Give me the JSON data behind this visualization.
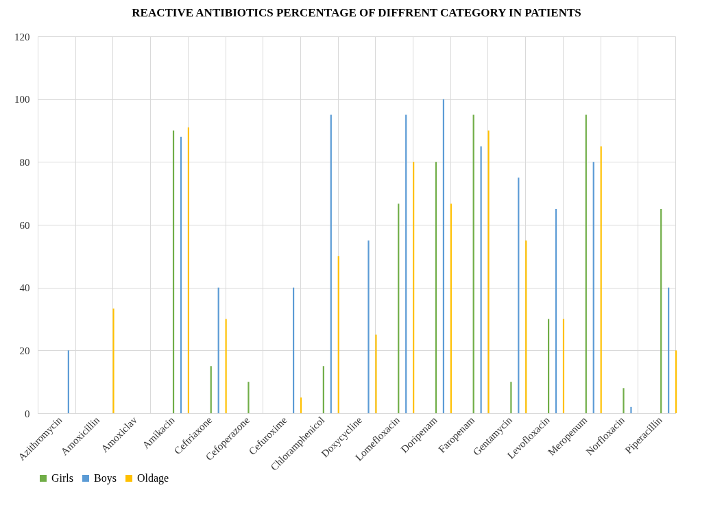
{
  "chart_data": {
    "type": "bar",
    "title": "REACTIVE ANTIBIOTICS PERCENTAGE OF DIFFRENT CATEGORY  IN PATIENTS",
    "categories": [
      "Azithromycin",
      "Amoxicillin",
      "Amoxiclav",
      "Amikacin",
      "Ceftriaxone",
      "Cefoperazone",
      "Cefuroxime",
      "Chloramphenicol",
      "Doxycycline",
      "Lomefloxacin",
      "Doripenam",
      "Faropenam",
      "Gentamycin",
      "Levofloxacin",
      "Meropenum",
      "Norfloxacin",
      "Piperacillin"
    ],
    "series": [
      {
        "name": "Girls",
        "color": "#70ad47",
        "values": [
          0,
          0,
          0,
          90,
          15,
          10,
          0,
          15,
          0,
          66.7,
          80,
          95,
          10,
          30,
          95,
          8,
          65
        ]
      },
      {
        "name": "Boys",
        "color": "#5b9bd5",
        "values": [
          20,
          0,
          0,
          88,
          40,
          0,
          40,
          95,
          55,
          95,
          100,
          85,
          75,
          65,
          80,
          2,
          40
        ]
      },
      {
        "name": "Oldage",
        "color": "#ffc000",
        "values": [
          0,
          33.3,
          0,
          91,
          30,
          0,
          5,
          50,
          25,
          80,
          66.7,
          90,
          55,
          30,
          85,
          0,
          20
        ]
      }
    ],
    "ylim": [
      0,
      120
    ],
    "yticks": [
      0,
      20,
      40,
      60,
      80,
      100,
      120
    ],
    "grid": true,
    "legend": "bottom"
  }
}
